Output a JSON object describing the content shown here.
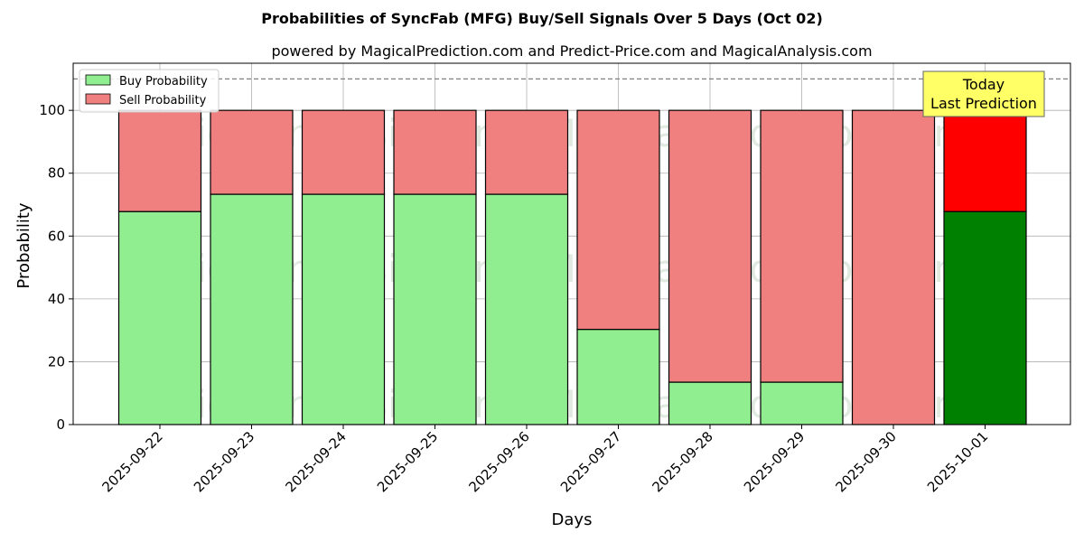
{
  "chart_data": {
    "type": "bar",
    "stacked": true,
    "title": "Probabilities of SyncFab (MFG) Buy/Sell Signals Over 5 Days (Oct 02)",
    "subtitle": "powered by MagicalPrediction.com and Predict-Price.com and MagicalAnalysis.com",
    "xlabel": "Days",
    "ylabel": "Probability",
    "ylim": [
      0,
      115
    ],
    "yticks": [
      0,
      20,
      40,
      60,
      80,
      100
    ],
    "categories": [
      "2025-09-22",
      "2025-09-23",
      "2025-09-24",
      "2025-09-25",
      "2025-09-26",
      "2025-09-27",
      "2025-09-28",
      "2025-09-29",
      "2025-09-30",
      "2025-10-01"
    ],
    "series": [
      {
        "name": "Buy Probability",
        "values": [
          67.8,
          73.3,
          73.3,
          73.3,
          73.3,
          30.3,
          13.5,
          13.5,
          0,
          67.8
        ],
        "color": "#90ee90",
        "highlight_color": "#008000"
      },
      {
        "name": "Sell Probability",
        "values": [
          32.2,
          26.7,
          26.7,
          26.7,
          26.7,
          69.7,
          86.5,
          86.5,
          100,
          32.2
        ],
        "color": "#f08080",
        "highlight_color": "#ff0000"
      }
    ],
    "highlight_index": 9,
    "reference_line": {
      "y": 110,
      "style": "dashed",
      "color": "#808080"
    },
    "annotation": {
      "lines": [
        "Today",
        "Last Prediction"
      ],
      "background": "#ffff66"
    },
    "legend_position": "top-left",
    "grid": true,
    "watermarks": [
      "MagicalAnalysis.com",
      "MagicalPrediction.com"
    ]
  }
}
